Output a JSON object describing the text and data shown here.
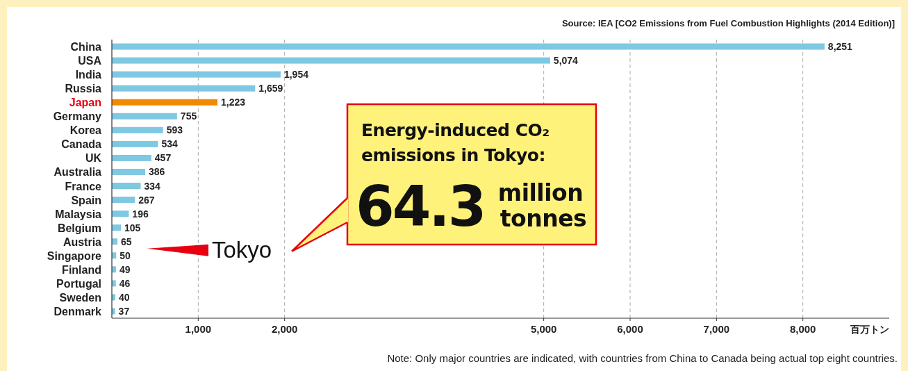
{
  "chart_data": {
    "type": "bar",
    "orientation": "horizontal",
    "categories": [
      "China",
      "USA",
      "India",
      "Russia",
      "Japan",
      "Germany",
      "Korea",
      "Canada",
      "UK",
      "Australia",
      "France",
      "Spain",
      "Malaysia",
      "Belgium",
      "Austria",
      "Singapore",
      "Finland",
      "Portugal",
      "Sweden",
      "Denmark"
    ],
    "values": [
      8251,
      5074,
      1954,
      1659,
      1223,
      755,
      593,
      534,
      457,
      386,
      334,
      267,
      196,
      105,
      65,
      50,
      49,
      46,
      40,
      37
    ],
    "value_labels": [
      "8,251",
      "5,074",
      "1,954",
      "1,659",
      "1,223",
      "755",
      "593",
      "534",
      "457",
      "386",
      "334",
      "267",
      "196",
      "105",
      "65",
      "50",
      "49",
      "46",
      "40",
      "37"
    ],
    "color": "#7fc8e2",
    "colors": [
      "#7fc8e2",
      "#7fc8e2",
      "#7fc8e2",
      "#7fc8e2",
      "#f08a00",
      "#7fc8e2",
      "#7fc8e2",
      "#7fc8e2",
      "#7fc8e2",
      "#7fc8e2",
      "#7fc8e2",
      "#7fc8e2",
      "#7fc8e2",
      "#7fc8e2",
      "#7fc8e2",
      "#7fc8e2",
      "#7fc8e2",
      "#7fc8e2",
      "#7fc8e2",
      "#7fc8e2"
    ],
    "xlim": [
      0,
      9000
    ],
    "xticks": [
      {
        "value": 1000,
        "label": "1,000"
      },
      {
        "value": 2000,
        "label": "2,000"
      },
      {
        "value": 5000,
        "label": "5,000"
      },
      {
        "value": 6000,
        "label": "6,000"
      },
      {
        "value": 7000,
        "label": "7,000"
      },
      {
        "value": 8000,
        "label": "8,000"
      }
    ],
    "xlabel": "百万トン",
    "grid": "x",
    "annotations": [
      "Source: IEA [CO2 Emissions from Fuel Combustion Highlights (2014 Edition)]",
      "Note: Only major countries are indicated, with countries from China to Canada being actual top eight countries.",
      "Tokyo",
      "Energy-induced CO₂",
      "emissions in Tokyo:",
      "64.3",
      "million",
      "tonnes"
    ]
  }
}
